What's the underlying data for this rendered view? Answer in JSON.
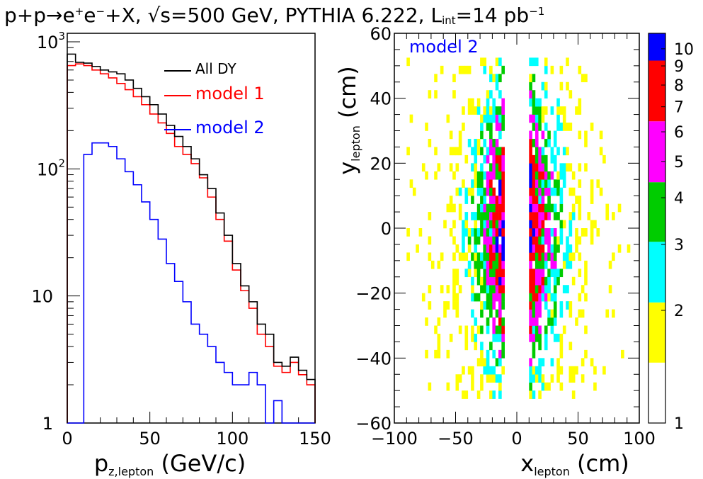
{
  "title": {
    "prefix": "p+p",
    "arrow": "→",
    "e": "e",
    "plus": "+",
    "minus": "−",
    "mid": "+X, √s=500 GeV, PYTHIA 6.222, L",
    "lum_sub": "int",
    "lum_eq": "=14 pb",
    "lum_sup": "−1"
  },
  "chart_data": [
    {
      "type": "line",
      "subtype": "histogram",
      "xlabel": "p",
      "xlabel_sub": "z,lepton",
      "xlabel_unit": "(GeV/c)",
      "ylabel": "",
      "xlim": [
        0,
        150
      ],
      "ylim": [
        1,
        1000
      ],
      "yscale": "log",
      "xticks": [
        0,
        50,
        100,
        150
      ],
      "yticks": [
        {
          "value": 1,
          "label": "1"
        },
        {
          "value": 10,
          "label": "10"
        },
        {
          "value": 100,
          "label": "10",
          "sup": "2"
        },
        {
          "value": 1000,
          "label": "10",
          "sup": "3"
        }
      ],
      "legend_position": "top-right",
      "x": [
        0,
        5,
        10,
        15,
        20,
        25,
        30,
        35,
        40,
        45,
        50,
        55,
        60,
        65,
        70,
        75,
        80,
        85,
        90,
        95,
        100,
        105,
        110,
        115,
        120,
        125,
        130,
        135,
        140,
        145
      ],
      "series": [
        {
          "name": "All DY",
          "color": "#000000",
          "values": [
            800,
            690,
            680,
            640,
            600,
            580,
            560,
            500,
            430,
            370,
            320,
            270,
            220,
            180,
            150,
            120,
            90,
            70,
            45,
            30,
            18,
            12,
            9,
            6,
            5,
            3,
            2.8,
            3.3,
            2.6,
            2.2
          ]
        },
        {
          "name": "model 1",
          "color": "#ff0000",
          "values": [
            650,
            670,
            650,
            600,
            560,
            520,
            470,
            420,
            370,
            320,
            270,
            230,
            190,
            150,
            130,
            110,
            85,
            60,
            40,
            27,
            16,
            11,
            8,
            5,
            4,
            2.8,
            2.5,
            3,
            2.4,
            2
          ]
        },
        {
          "name": "model 2",
          "color": "#0000ff",
          "values": [
            0,
            0,
            130,
            160,
            160,
            150,
            120,
            95,
            75,
            55,
            40,
            28,
            18,
            13,
            9,
            6,
            5,
            4,
            3,
            2.5,
            2,
            2,
            2.5,
            2,
            0,
            1.5,
            0,
            0,
            0,
            0
          ]
        }
      ]
    },
    {
      "type": "heatmap",
      "xlabel": "x",
      "xlabel_sub": "lepton",
      "xlabel_unit": "(cm)",
      "ylabel": "y",
      "ylabel_sub": "lepton",
      "ylabel_unit": "(cm)",
      "annotation": "model 2",
      "xlim": [
        -100,
        100
      ],
      "ylim": [
        -60,
        60
      ],
      "xticks": [
        -100,
        -50,
        0,
        50,
        100
      ],
      "yticks": [
        -60,
        -40,
        -20,
        0,
        20,
        40,
        60
      ],
      "x_gap": [
        -10,
        10
      ],
      "colorbar": {
        "scale": "log",
        "range": [
          1,
          11
        ],
        "labels": [
          "1",
          "2",
          "3",
          "4",
          "5",
          "6",
          "7",
          "8",
          "9",
          "10"
        ],
        "levels": [
          {
            "from": 1,
            "to": 1.45,
            "color": "#ffffff"
          },
          {
            "from": 1.45,
            "to": 2.1,
            "color": "#ffff00"
          },
          {
            "from": 2.1,
            "to": 3.05,
            "color": "#00ffff"
          },
          {
            "from": 3.05,
            "to": 4.4,
            "color": "#00cc00"
          },
          {
            "from": 4.4,
            "to": 6.4,
            "color": "#ff00ff"
          },
          {
            "from": 6.4,
            "to": 9.3,
            "color": "#ff0000"
          },
          {
            "from": 9.3,
            "to": 13.5,
            "color": "#0000ff"
          },
          {
            "from": 13.5,
            "to": 19.5,
            "color": "#000000"
          }
        ]
      }
    }
  ]
}
